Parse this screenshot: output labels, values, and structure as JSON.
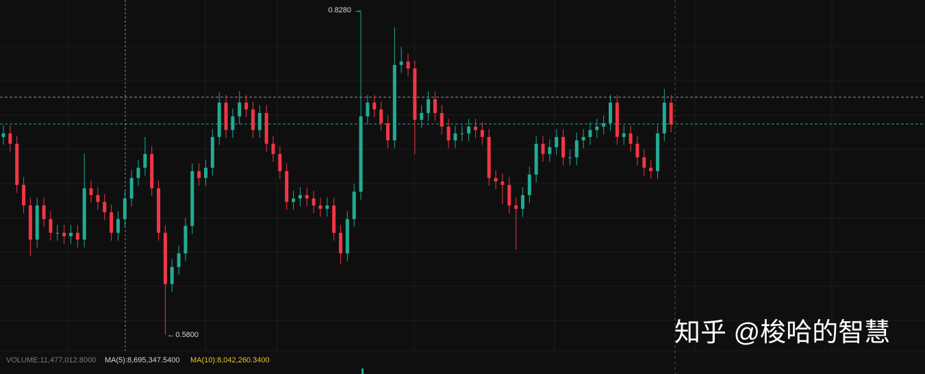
{
  "chart_data": {
    "type": "candlestick",
    "up_color": "#22ab94",
    "down_color": "#f23645",
    "ylim": [
      0.569,
      0.8358
    ],
    "open": [
      0.7312,
      0.7339,
      0.726,
      0.6946,
      0.6789,
      0.6528,
      0.6789,
      0.6685,
      0.658,
      0.658,
      0.6554,
      0.658,
      0.6528,
      0.692,
      0.6868,
      0.6816,
      0.6737,
      0.658,
      0.6685,
      0.6842,
      0.6999,
      0.7077,
      0.7182,
      0.692,
      0.658,
      0.6188,
      0.6319,
      0.6423,
      0.6633,
      0.7051,
      0.6999,
      0.7077,
      0.7312,
      0.7574,
      0.7365,
      0.7469,
      0.7574,
      0.7522,
      0.7365,
      0.7495,
      0.726,
      0.7182,
      0.7051,
      0.6816,
      0.6842,
      0.6868,
      0.6842,
      0.6789,
      0.6763,
      0.6789,
      0.658,
      0.6423,
      0.6685,
      0.6894,
      0.7469,
      0.7574,
      0.7522,
      0.7417,
      0.7286,
      0.7862,
      0.7888,
      0.7835,
      0.7443,
      0.7495,
      0.76,
      0.7495,
      0.7391,
      0.7286,
      0.7339,
      0.7339,
      0.7391,
      0.7365,
      0.7312,
      0.6999,
      0.6972,
      0.6946,
      0.6789,
      0.6763,
      0.6868,
      0.7025,
      0.726,
      0.7182,
      0.7234,
      0.7312,
      0.7156,
      0.7156,
      0.7286,
      0.7312,
      0.7365,
      0.7391,
      0.7417,
      0.7574,
      0.7312,
      0.7339,
      0.726,
      0.7156,
      0.7077,
      0.7051,
      0.7339,
      0.7574
    ],
    "high": [
      0.7399,
      0.7399,
      0.732,
      0.7006,
      0.6849,
      0.6849,
      0.6849,
      0.6745,
      0.664,
      0.664,
      0.664,
      0.664,
      0.7182,
      0.698,
      0.6928,
      0.6876,
      0.6797,
      0.6745,
      0.6902,
      0.7059,
      0.7137,
      0.7312,
      0.7242,
      0.698,
      0.664,
      0.6379,
      0.6483,
      0.6693,
      0.7111,
      0.7111,
      0.7137,
      0.7372,
      0.7652,
      0.7634,
      0.7529,
      0.7662,
      0.7634,
      0.7582,
      0.7555,
      0.7555,
      0.732,
      0.7242,
      0.7111,
      0.6902,
      0.6928,
      0.6928,
      0.6902,
      0.6849,
      0.6849,
      0.6849,
      0.664,
      0.6745,
      0.6954,
      0.828,
      0.7634,
      0.7634,
      0.7582,
      0.7477,
      0.8149,
      0.8,
      0.7948,
      0.7895,
      0.7555,
      0.766,
      0.766,
      0.7555,
      0.7451,
      0.7399,
      0.7399,
      0.7451,
      0.7451,
      0.7425,
      0.7372,
      0.7059,
      0.7032,
      0.7006,
      0.6849,
      0.6928,
      0.7085,
      0.732,
      0.732,
      0.7294,
      0.7372,
      0.7372,
      0.7216,
      0.7346,
      0.7372,
      0.7425,
      0.7451,
      0.7477,
      0.7634,
      0.7634,
      0.7399,
      0.7399,
      0.732,
      0.7216,
      0.7137,
      0.7399,
      0.7679,
      0.7634
    ],
    "low": [
      0.7252,
      0.72,
      0.6886,
      0.6729,
      0.64,
      0.6468,
      0.6625,
      0.652,
      0.652,
      0.6494,
      0.6494,
      0.6468,
      0.6468,
      0.6808,
      0.6756,
      0.6677,
      0.652,
      0.652,
      0.6625,
      0.6782,
      0.6939,
      0.7017,
      0.686,
      0.652,
      0.58,
      0.6128,
      0.6259,
      0.6363,
      0.6573,
      0.6939,
      0.6939,
      0.7017,
      0.7252,
      0.7305,
      0.7305,
      0.7409,
      0.7462,
      0.7305,
      0.7305,
      0.72,
      0.7122,
      0.6991,
      0.6756,
      0.6756,
      0.6782,
      0.6782,
      0.6729,
      0.6703,
      0.6703,
      0.652,
      0.634,
      0.6363,
      0.6625,
      0.6834,
      0.7409,
      0.7462,
      0.7357,
      0.7226,
      0.7226,
      0.7802,
      0.7775,
      0.718,
      0.7383,
      0.7435,
      0.7435,
      0.7331,
      0.7226,
      0.7226,
      0.7279,
      0.7279,
      0.7305,
      0.7252,
      0.6939,
      0.6912,
      0.68,
      0.6729,
      0.645,
      0.6703,
      0.6808,
      0.6965,
      0.7122,
      0.7122,
      0.7174,
      0.7096,
      0.7096,
      0.7096,
      0.7226,
      0.7252,
      0.7305,
      0.7331,
      0.7357,
      0.7252,
      0.7252,
      0.72,
      0.7096,
      0.7017,
      0.6991,
      0.6991,
      0.7279,
      0.7347
    ],
    "close": [
      0.7339,
      0.726,
      0.6946,
      0.6789,
      0.6528,
      0.6789,
      0.6685,
      0.658,
      0.658,
      0.6554,
      0.658,
      0.6528,
      0.692,
      0.6868,
      0.6816,
      0.6737,
      0.658,
      0.6685,
      0.6842,
      0.6999,
      0.7077,
      0.7182,
      0.692,
      0.658,
      0.6188,
      0.6319,
      0.6423,
      0.6633,
      0.7051,
      0.6999,
      0.7077,
      0.7312,
      0.7574,
      0.7365,
      0.7469,
      0.7574,
      0.7522,
      0.7365,
      0.7495,
      0.726,
      0.7182,
      0.7051,
      0.6816,
      0.6842,
      0.6868,
      0.6842,
      0.6789,
      0.6763,
      0.6789,
      0.658,
      0.6423,
      0.6685,
      0.6894,
      0.7469,
      0.7574,
      0.7522,
      0.7417,
      0.7286,
      0.7862,
      0.7888,
      0.7835,
      0.7443,
      0.7495,
      0.76,
      0.7495,
      0.7391,
      0.7286,
      0.7339,
      0.7339,
      0.7391,
      0.7365,
      0.7312,
      0.6999,
      0.6972,
      0.6946,
      0.6789,
      0.6763,
      0.6868,
      0.7025,
      0.726,
      0.7182,
      0.7234,
      0.7312,
      0.7156,
      0.7156,
      0.7286,
      0.7312,
      0.7365,
      0.7391,
      0.7417,
      0.7574,
      0.7312,
      0.7339,
      0.726,
      0.7156,
      0.7077,
      0.7051,
      0.7339,
      0.7574,
      0.7407
    ],
    "high_label": "0.8280",
    "low_label": "0.5800",
    "price_lines": [
      {
        "value": 0.7616,
        "color": "#9a9a9a"
      },
      {
        "value": 0.7411,
        "color": "#22ab94"
      }
    ],
    "volume_legend": [
      {
        "text": "VOLUME:11,477,012.8000",
        "color": "#7c7c7c"
      },
      {
        "text": "MA(5):8,695,347.5400",
        "color": "#d4d4d4"
      },
      {
        "text": "MA(10):8,042,260.3400",
        "color": "#e8c62c"
      }
    ],
    "watermark": "知乎 @梭哈的智慧"
  }
}
